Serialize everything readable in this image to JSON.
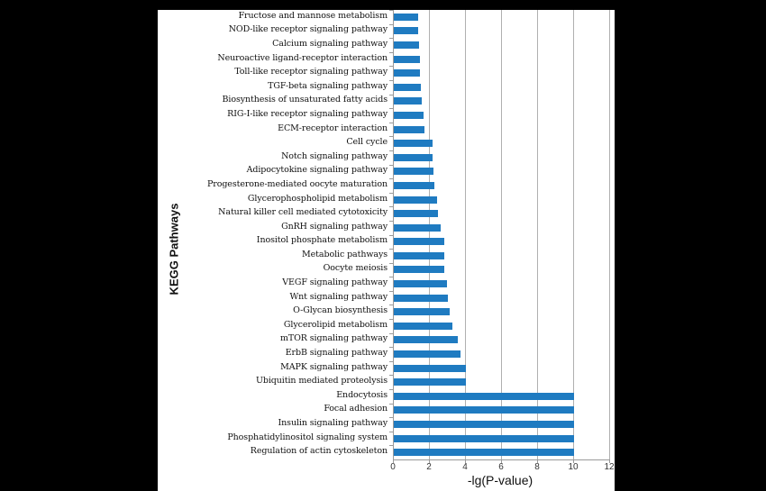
{
  "chart_data": {
    "type": "bar",
    "orientation": "horizontal",
    "title": "",
    "xlabel": "-lg(P-value)",
    "ylabel": "KEGG Pathways",
    "xlim": [
      0,
      12
    ],
    "xticks": [
      0,
      2,
      4,
      6,
      8,
      10,
      12
    ],
    "grid": "vertical",
    "legend": "none",
    "bar_color": "#1f7bc1",
    "categories": [
      "Fructose and mannose metabolism",
      "NOD-like receptor signaling pathway",
      "Calcium signaling pathway",
      "Neuroactive ligand-receptor interaction",
      "Toll-like receptor signaling pathway",
      "TGF-beta signaling pathway",
      "Biosynthesis of unsaturated fatty acids",
      "RIG-I-like receptor signaling pathway",
      "ECM-receptor interaction",
      "Cell cycle",
      "Notch signaling pathway",
      "Adipocytokine signaling pathway",
      "Progesterone-mediated oocyte maturation",
      "Glycerophospholipid metabolism",
      "Natural killer cell mediated cytotoxicity",
      "GnRH signaling pathway",
      "Inositol phosphate metabolism",
      "Metabolic pathways",
      "Oocyte meiosis",
      "VEGF signaling pathway",
      "Wnt signaling pathway",
      "O-Glycan biosynthesis",
      "Glycerolipid metabolism",
      "mTOR signaling pathway",
      "ErbB signaling pathway",
      "MAPK signaling pathway",
      "Ubiquitin mediated proteolysis",
      "Endocytosis",
      "Focal adhesion",
      "Insulin signaling pathway",
      "Phosphatidylinositol signaling system",
      "Regulation of actin cytoskeleton"
    ],
    "values": [
      1.35,
      1.35,
      1.4,
      1.45,
      1.45,
      1.5,
      1.55,
      1.65,
      1.7,
      2.15,
      2.15,
      2.2,
      2.25,
      2.4,
      2.45,
      2.6,
      2.8,
      2.8,
      2.8,
      2.95,
      3.0,
      3.1,
      3.25,
      3.55,
      3.7,
      4.0,
      4.0,
      10,
      10,
      10,
      10,
      10
    ]
  }
}
